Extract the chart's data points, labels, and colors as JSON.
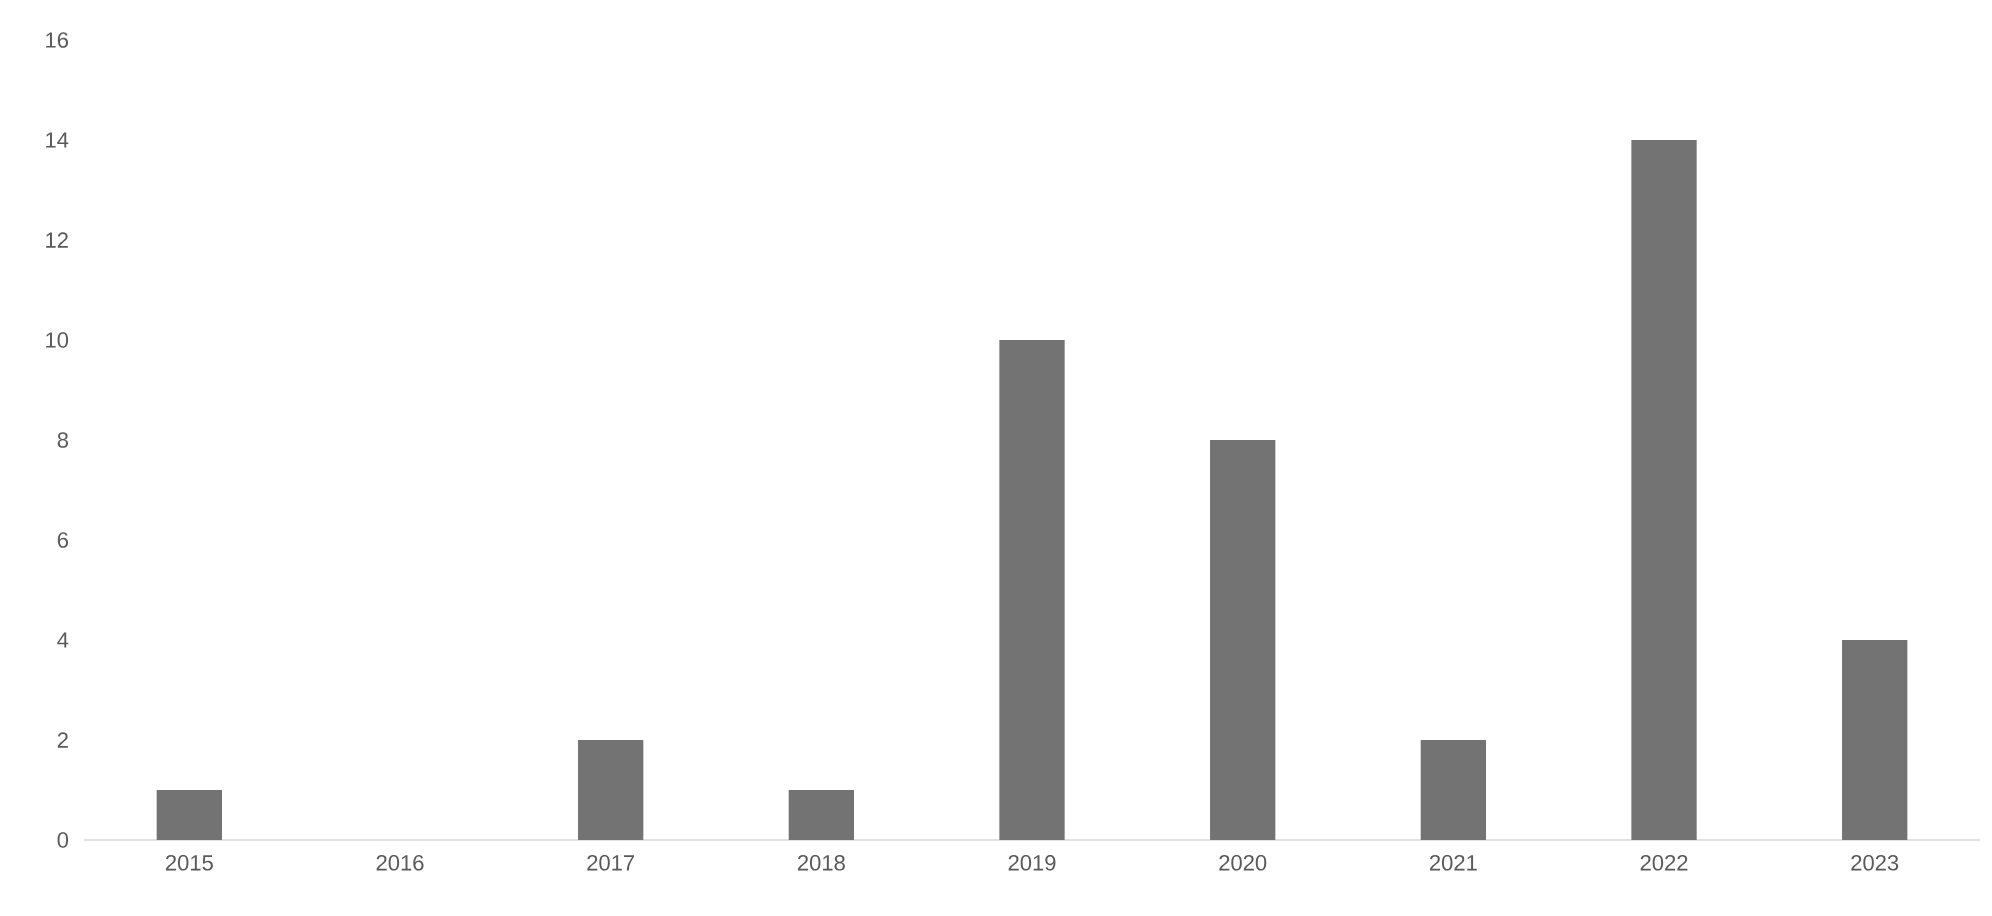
{
  "chart_data": {
    "type": "bar",
    "categories": [
      "2015",
      "2016",
      "2017",
      "2018",
      "2019",
      "2020",
      "2021",
      "2022",
      "2023"
    ],
    "values": [
      1,
      0,
      2,
      1,
      10,
      8,
      2,
      14,
      4
    ],
    "color": "#737373",
    "ylim": [
      0,
      16
    ],
    "yticks": [
      0,
      2,
      4,
      6,
      8,
      10,
      12,
      14,
      16
    ]
  }
}
